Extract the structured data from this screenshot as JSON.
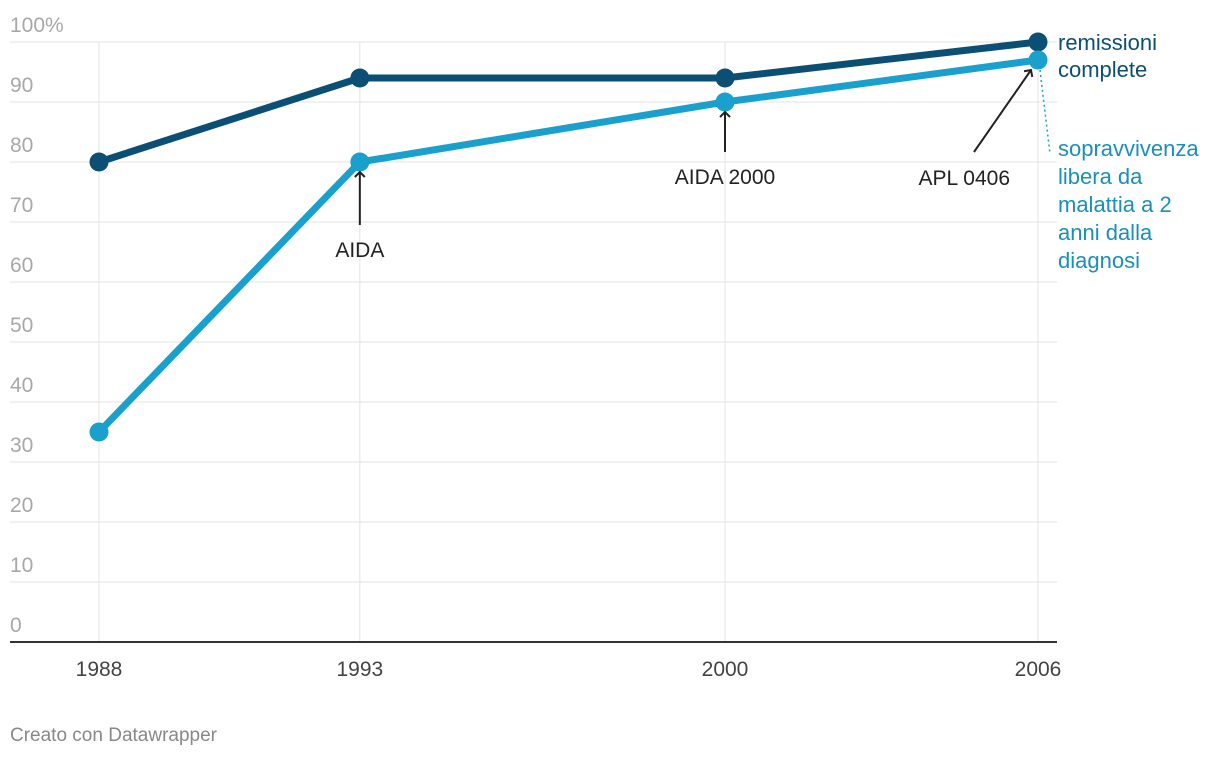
{
  "chart_data": {
    "type": "line",
    "x": [
      1988,
      1993,
      2000,
      2006
    ],
    "xticks": [
      "1988",
      "1993",
      "2000",
      "2006"
    ],
    "ylim": [
      0,
      100
    ],
    "yticks": [
      "0",
      "10",
      "20",
      "30",
      "40",
      "50",
      "60",
      "70",
      "80",
      "90",
      "100%"
    ],
    "grid": true,
    "series": [
      {
        "name": "remissioni complete",
        "label_lines": [
          "remissioni",
          "complete"
        ],
        "color": "#0b4f75",
        "values": [
          80,
          94,
          94,
          100
        ]
      },
      {
        "name": "sopravvivenza libera da malattia a 2 anni dalla diagnosi",
        "label_lines": [
          "sopravvivenza",
          "libera da",
          "malattia a 2",
          "anni dalla",
          "diagnosi"
        ],
        "color": "#1aa0cc",
        "label_color": "#1890ba",
        "values": [
          35,
          80,
          90,
          97
        ]
      }
    ],
    "annotations": [
      {
        "text": "AIDA",
        "x": 1993,
        "y": 80
      },
      {
        "text": "AIDA 2000",
        "x": 2000,
        "y": 90
      },
      {
        "text": "APL 0406",
        "x": 2006,
        "y": 97
      }
    ]
  },
  "footer": {
    "credit": "Creato con Datawrapper"
  }
}
